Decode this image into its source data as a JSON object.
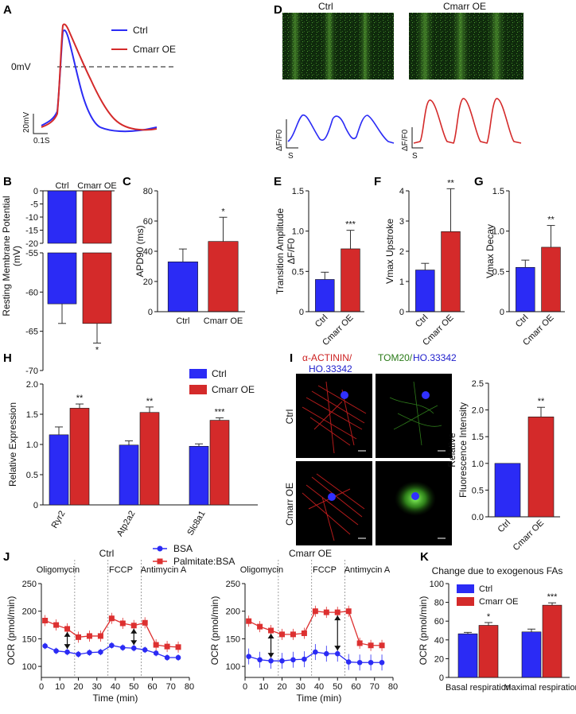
{
  "colors": {
    "ctrl": "#2b2bf5",
    "oe": "#d42a2a",
    "bsa": "#2b2bf5",
    "palm": "#dd3030",
    "green": "#3aa020",
    "red": "#cc2020",
    "blue": "#2020cc"
  },
  "panel_labels": {
    "A": "A",
    "B": "B",
    "C": "C",
    "D": "D",
    "E": "E",
    "F": "F",
    "G": "G",
    "H": "H",
    "I": "I",
    "J": "J",
    "K": "K"
  },
  "panelA": {
    "legend_ctrl": "Ctrl",
    "legend_oe": "Cmarr OE",
    "zero_label": "0mV",
    "scale_v": "20mV",
    "scale_t": "0.1S"
  },
  "panelD": {
    "title_ctrl": "Ctrl",
    "title_oe": "Cmarr  OE",
    "ylabel": "ΔF/F0",
    "xlabel": "S"
  },
  "panelI": {
    "title_left_1": "α-ACTININ/",
    "title_left_2": "HO.33342",
    "title_right_1": "TOM20/",
    "title_right_2": "HO.33342",
    "row_ctrl": "Ctrl",
    "row_oe": "Cmarr OE"
  },
  "panelJ": {
    "legend_bsa": "BSA",
    "legend_palm": "Palmitate:BSA",
    "title_ctrl": "Ctrl",
    "title_oe": "Cmarr OE",
    "oligomycin": "Oligomycin",
    "fccp": "FCCP",
    "antimycin": "Antimycin A"
  },
  "chart_data": [
    {
      "id": "B",
      "type": "bar",
      "ylabel": "Resting Membrane Potential  (mV)",
      "categories": [
        "Ctrl",
        "Cmarr OE"
      ],
      "values": [
        -61.5,
        -64
      ],
      "errors": [
        2.5,
        2.5
      ],
      "sig": [
        "",
        "*"
      ],
      "ylim": [
        -70,
        0
      ],
      "axis_break": [
        -20,
        -55
      ],
      "ticks": [
        "0",
        "-5",
        "-10",
        "-15",
        "-20",
        "-55",
        "-60",
        "-65",
        "-70"
      ]
    },
    {
      "id": "C",
      "type": "bar",
      "ylabel": "APD90 (ms)",
      "categories": [
        "Ctrl",
        "Cmarr OE"
      ],
      "values": [
        33,
        46.5
      ],
      "errors": [
        8.5,
        16
      ],
      "sig": [
        "",
        "*"
      ],
      "ylim": [
        0,
        80
      ],
      "ticks": [
        "0",
        "20",
        "40",
        "60",
        "80"
      ]
    },
    {
      "id": "E",
      "type": "bar",
      "ylabel": "Transition Amplitude ΔF/F0",
      "categories": [
        "Ctrl",
        "Cmarr OE"
      ],
      "values": [
        0.4,
        0.78
      ],
      "errors": [
        0.09,
        0.23
      ],
      "sig": [
        "",
        "***"
      ],
      "ylim": [
        0,
        1.5
      ],
      "ticks": [
        "0",
        "0.5",
        "1.0",
        "1.5"
      ]
    },
    {
      "id": "F",
      "type": "bar",
      "ylabel": "Vmax Upstroke",
      "categories": [
        "Ctrl",
        "Cmarr OE"
      ],
      "values": [
        1.38,
        2.65
      ],
      "errors": [
        0.22,
        1.42
      ],
      "sig": [
        "",
        "**"
      ],
      "ylim": [
        0,
        4
      ],
      "ticks": [
        "0",
        "1",
        "2",
        "3",
        "4"
      ]
    },
    {
      "id": "G",
      "type": "bar",
      "ylabel": "Vmax Decay",
      "categories": [
        "Ctrl",
        "Cmarr OE"
      ],
      "values": [
        0.55,
        0.8
      ],
      "errors": [
        0.09,
        0.27
      ],
      "sig": [
        "",
        "**"
      ],
      "ylim": [
        0,
        1.5
      ],
      "ticks": [
        "0",
        "0.5",
        "1.0",
        "1.5"
      ]
    },
    {
      "id": "H",
      "type": "bar",
      "ylabel": "Relative Expression",
      "categories": [
        "Ryr2",
        "Atp2a2",
        "Slc8a1"
      ],
      "series": [
        {
          "name": "Ctrl",
          "values": [
            1.16,
            0.99,
            0.97
          ],
          "errors": [
            0.13,
            0.07,
            0.04
          ]
        },
        {
          "name": "Cmarr OE",
          "values": [
            1.6,
            1.53,
            1.4
          ],
          "errors": [
            0.07,
            0.09,
            0.04
          ]
        }
      ],
      "sig": [
        "**",
        "**",
        "***"
      ],
      "ylim": [
        0,
        2.0
      ],
      "ticks": [
        "0",
        "0.5",
        "1.0",
        "1.5",
        "2.0"
      ]
    },
    {
      "id": "I",
      "type": "bar",
      "ylabel": "Relative  Fluorescence Intensity",
      "categories": [
        "Ctrl",
        "Cmarr OE"
      ],
      "values": [
        1.0,
        1.87
      ],
      "errors": [
        0,
        0.18
      ],
      "sig": [
        "",
        "**"
      ],
      "ylim": [
        0,
        2.5
      ],
      "ticks": [
        "0.0",
        "0.5",
        "1.0",
        "1.5",
        "2.0",
        "2.5"
      ]
    },
    {
      "id": "J1",
      "type": "line",
      "title": "Ctrl",
      "xlabel": "Time (min)",
      "ylabel": "OCR (pmol/min)",
      "xlim": [
        0,
        80
      ],
      "ylim": [
        80,
        250
      ],
      "xticks": [
        "0",
        "10",
        "20",
        "30",
        "40",
        "50",
        "60",
        "70",
        "80"
      ],
      "yticks": [
        "100",
        "150",
        "200",
        "250"
      ],
      "x": [
        2,
        8,
        14,
        20,
        26,
        32,
        38,
        44,
        50,
        56,
        62,
        68,
        74
      ],
      "series": [
        {
          "name": "BSA",
          "values": [
            137,
            128,
            126,
            122,
            125,
            126,
            138,
            134,
            133,
            130,
            124,
            116,
            116
          ]
        },
        {
          "name": "Palmitate:BSA",
          "values": [
            183,
            175,
            168,
            153,
            155,
            155,
            187,
            178,
            174,
            179,
            139,
            136,
            135
          ]
        }
      ],
      "events": [
        18,
        36,
        54
      ]
    },
    {
      "id": "J2",
      "type": "line",
      "title": "Cmarr OE",
      "xlabel": "Time (min)",
      "ylabel": "OCR (pmol/min)",
      "xlim": [
        0,
        80
      ],
      "ylim": [
        80,
        250
      ],
      "xticks": [
        "0",
        "10",
        "20",
        "30",
        "40",
        "50",
        "60",
        "70",
        "80"
      ],
      "yticks": [
        "100",
        "150",
        "200",
        "250"
      ],
      "x": [
        2,
        8,
        14,
        20,
        26,
        32,
        38,
        44,
        50,
        56,
        62,
        68,
        74
      ],
      "series": [
        {
          "name": "BSA",
          "values": [
            118,
            112,
            110,
            110,
            112,
            113,
            126,
            123,
            123,
            108,
            107,
            107,
            107
          ]
        },
        {
          "name": "Palmitate:BSA",
          "values": [
            182,
            172,
            165,
            158,
            158,
            160,
            200,
            198,
            198,
            200,
            142,
            138,
            138
          ]
        }
      ],
      "events": [
        18,
        36,
        54
      ]
    },
    {
      "id": "K",
      "type": "bar",
      "title": "Change due to exogenous FAs",
      "ylabel": "OCR (pmol/min)",
      "categories": [
        "Basal respiration",
        "Maximal respiration"
      ],
      "series": [
        {
          "name": "Ctrl",
          "values": [
            46.5,
            48.5
          ],
          "errors": [
            1.5,
            3
          ]
        },
        {
          "name": "Cmarr OE",
          "values": [
            55.5,
            77
          ],
          "errors": [
            3,
            2.5
          ]
        }
      ],
      "sig": [
        "*",
        "***"
      ],
      "ylim": [
        0,
        100
      ],
      "ticks": [
        "0",
        "20",
        "40",
        "60",
        "80",
        "100"
      ]
    }
  ]
}
